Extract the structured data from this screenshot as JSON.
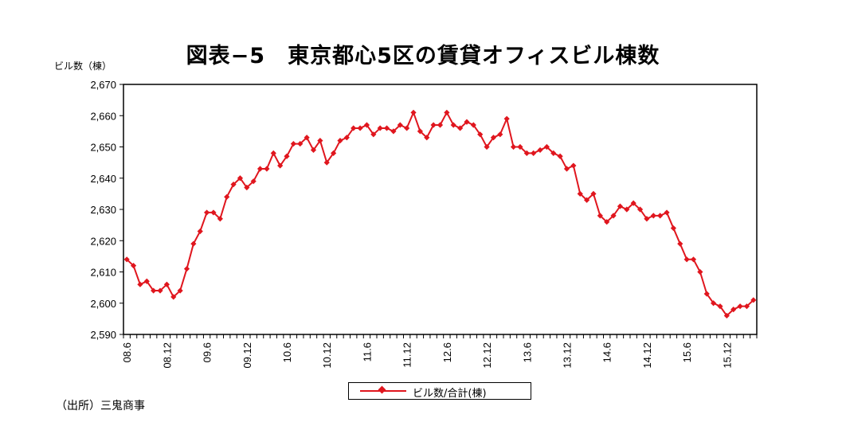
{
  "title": "図表−5　東京都心5区の賃貸オフィスビル棟数",
  "unit_label": "ビル数（棟）",
  "source": "（出所）三鬼商事",
  "legend_label": "ビル数/合計(棟)",
  "colors": {
    "series": "#e0161e",
    "axis": "#000000"
  },
  "chart_data": {
    "type": "line",
    "title": "図表−5　東京都心5区の賃貸オフィスビル棟数",
    "ylabel": "ビル数（棟）",
    "ylim": [
      2590,
      2670
    ],
    "yticks": [
      2590,
      2600,
      2610,
      2620,
      2630,
      2640,
      2650,
      2660,
      2670
    ],
    "ytick_labels": [
      "2,590",
      "2,600",
      "2,610",
      "2,620",
      "2,630",
      "2,640",
      "2,650",
      "2,660",
      "2,670"
    ],
    "xtick_labels": [
      "08.6",
      "08.12",
      "09.6",
      "09.12",
      "10.6",
      "10.12",
      "11.6",
      "11.12",
      "12.6",
      "12.12",
      "13.6",
      "13.12",
      "14.6",
      "14.12",
      "15.6",
      "15.12"
    ],
    "x_start": "2008-06",
    "x_frequency": "monthly",
    "grid": false,
    "legend_position": "bottom",
    "series": [
      {
        "name": "ビル数/合計(棟)",
        "values": [
          2614,
          2612,
          2606,
          2607,
          2604,
          2604,
          2606,
          2602,
          2604,
          2611,
          2619,
          2623,
          2629,
          2629,
          2627,
          2634,
          2638,
          2640,
          2637,
          2639,
          2643,
          2643,
          2648,
          2644,
          2647,
          2651,
          2651,
          2653,
          2649,
          2652,
          2645,
          2648,
          2652,
          2653,
          2656,
          2656,
          2657,
          2654,
          2656,
          2656,
          2655,
          2657,
          2656,
          2661,
          2655,
          2653,
          2657,
          2657,
          2661,
          2657,
          2656,
          2658,
          2657,
          2654,
          2650,
          2653,
          2654,
          2659,
          2650,
          2650,
          2648,
          2648,
          2649,
          2650,
          2648,
          2647,
          2643,
          2644,
          2635,
          2633,
          2635,
          2628,
          2626,
          2628,
          2631,
          2630,
          2632,
          2630,
          2627,
          2628,
          2628,
          2629,
          2624,
          2619,
          2614,
          2614,
          2610,
          2603,
          2600,
          2599,
          2596,
          2598,
          2599,
          2599,
          2601
        ]
      }
    ]
  }
}
